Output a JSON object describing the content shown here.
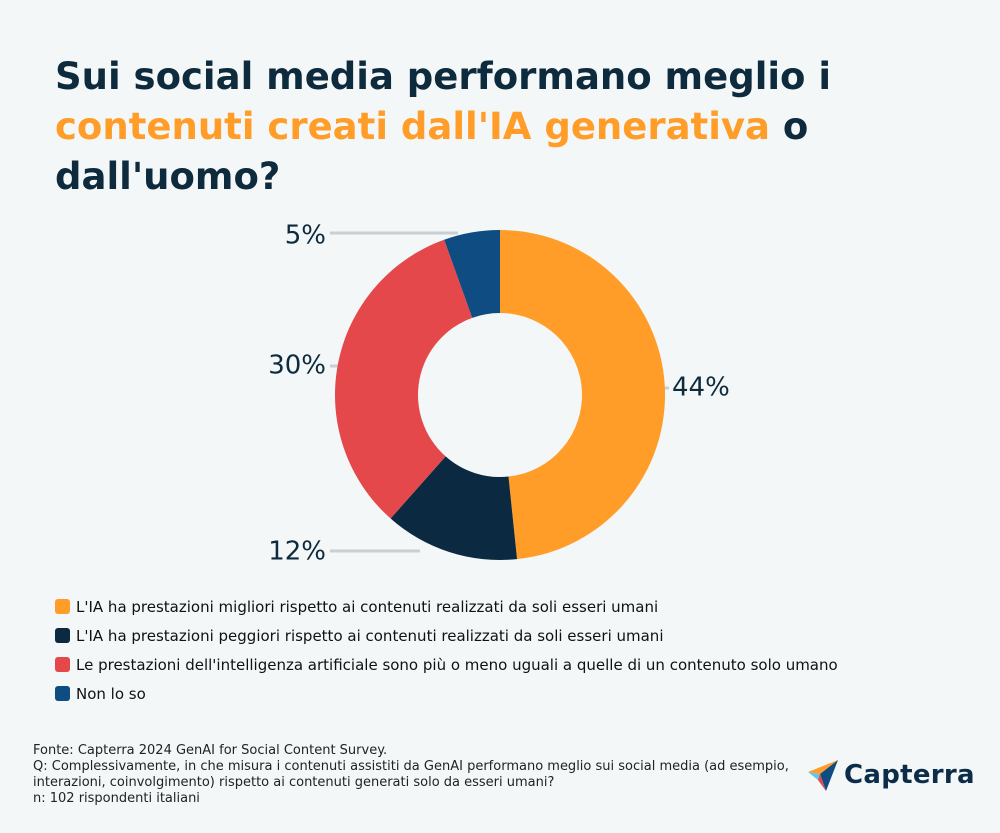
{
  "header": {
    "title_part1": "Sui social media performano meglio i ",
    "title_highlight": "contenuti creati dall'IA generativa",
    "title_part2": " o dall'uomo?"
  },
  "chart_data": {
    "type": "pie",
    "style": "donut",
    "categories": [
      "L'IA ha prestazioni migliori rispetto ai contenuti realizzati da soli esseri umani",
      "L'IA ha prestazioni peggiori rispetto ai contenuti realizzati da soli esseri umani",
      "Le prestazioni dell'intelligenza artificiale sono più o meno uguali a quelle di un contenuto solo umano",
      "Non lo so"
    ],
    "values": [
      44,
      12,
      30,
      5
    ],
    "labels": [
      "44%",
      "12%",
      "30%",
      "5%"
    ],
    "colors": [
      "#ff9d28",
      "#0b2a42",
      "#e5484a",
      "#0f4c81"
    ],
    "legend_position": "bottom-left"
  },
  "footer": {
    "source": "Fonte:  Capterra 2024 GenAI for Social Content Survey.",
    "question": "Q: Complessivamente, in che misura i contenuti assistiti da GenAI performano meglio sui social media (ad esempio, interazioni, coinvolgimento) rispetto ai contenuti generati solo da esseri umani?",
    "sample": "n: 102 rispondenti italiani"
  },
  "brand": {
    "name": "Capterra"
  }
}
